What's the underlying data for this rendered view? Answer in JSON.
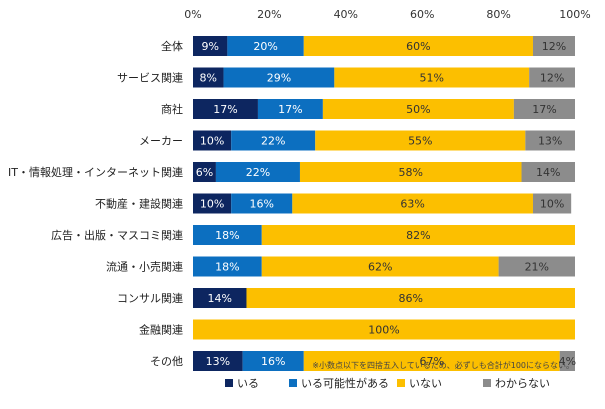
{
  "chart_data": {
    "type": "bar",
    "orientation": "horizontal",
    "stacked": true,
    "xlim": [
      0,
      100
    ],
    "x_ticks": [
      "0%",
      "20%",
      "40%",
      "60%",
      "80%",
      "100%"
    ],
    "grid": false,
    "legend_position": "bottom",
    "categories": [
      "全体",
      "サービス関連",
      "商社",
      "メーカー",
      "IT・情報処理・インターネット関連",
      "不動産・建設関連",
      "広告・出版・マスコミ関連",
      "流通・小売関連",
      "コンサル関連",
      "金融関連",
      "その他"
    ],
    "series": [
      {
        "name": "いる",
        "color": "#0d2660",
        "values": [
          9,
          8,
          17,
          10,
          6,
          10,
          0,
          0,
          14,
          0,
          13
        ]
      },
      {
        "name": "いる可能性がある",
        "color": "#0c6fc0",
        "values": [
          20,
          29,
          17,
          22,
          22,
          16,
          18,
          18,
          0,
          0,
          16
        ]
      },
      {
        "name": "いない",
        "color": "#fcbf00",
        "values": [
          60,
          51,
          50,
          55,
          58,
          63,
          82,
          62,
          86,
          100,
          67
        ]
      },
      {
        "name": "わからない",
        "color": "#8c8c8c",
        "values": [
          12,
          12,
          17,
          13,
          14,
          10,
          0,
          21,
          0,
          0,
          4
        ]
      }
    ],
    "annotation": "※小数点以下を四捨五入しているため、必ずしも合計が100にならない。"
  }
}
